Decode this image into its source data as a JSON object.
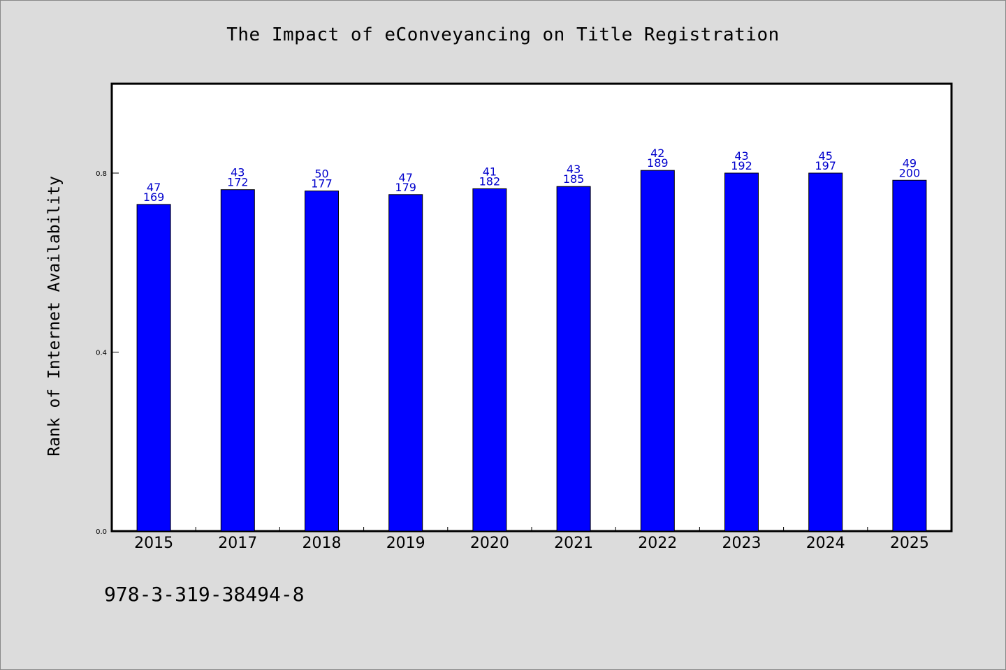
{
  "title": "The Impact of eConveyancing on Title Registration",
  "footnote": "978-3-319-38494-8",
  "colors": {
    "background": "#dcdcdc",
    "plot_background": "#ffffff",
    "bar": "#0000ff",
    "bar_label": "#0000cc",
    "axis": "#000000"
  },
  "chart_data": {
    "type": "bar",
    "title": "The Impact of eConveyancing on Title Registration",
    "xlabel": "",
    "ylabel": "Rank of Internet Availability",
    "categories": [
      "2015",
      "2017",
      "2018",
      "2019",
      "2020",
      "2021",
      "2022",
      "2023",
      "2024",
      "2025"
    ],
    "values": [
      0.73,
      0.763,
      0.76,
      0.752,
      0.765,
      0.77,
      0.806,
      0.8,
      0.8,
      0.784
    ],
    "labels_top": [
      "47",
      "43",
      "50",
      "47",
      "41",
      "43",
      "42",
      "43",
      "45",
      "49"
    ],
    "labels_bottom": [
      "169",
      "172",
      "177",
      "179",
      "182",
      "185",
      "189",
      "192",
      "197",
      "200"
    ],
    "ylim": [
      0,
      1.0
    ],
    "yticks": [
      0.0,
      0.4,
      0.8
    ],
    "ytick_labels": [
      "0.0",
      "0.4",
      "0.8"
    ],
    "grid": false,
    "legend": "none"
  }
}
